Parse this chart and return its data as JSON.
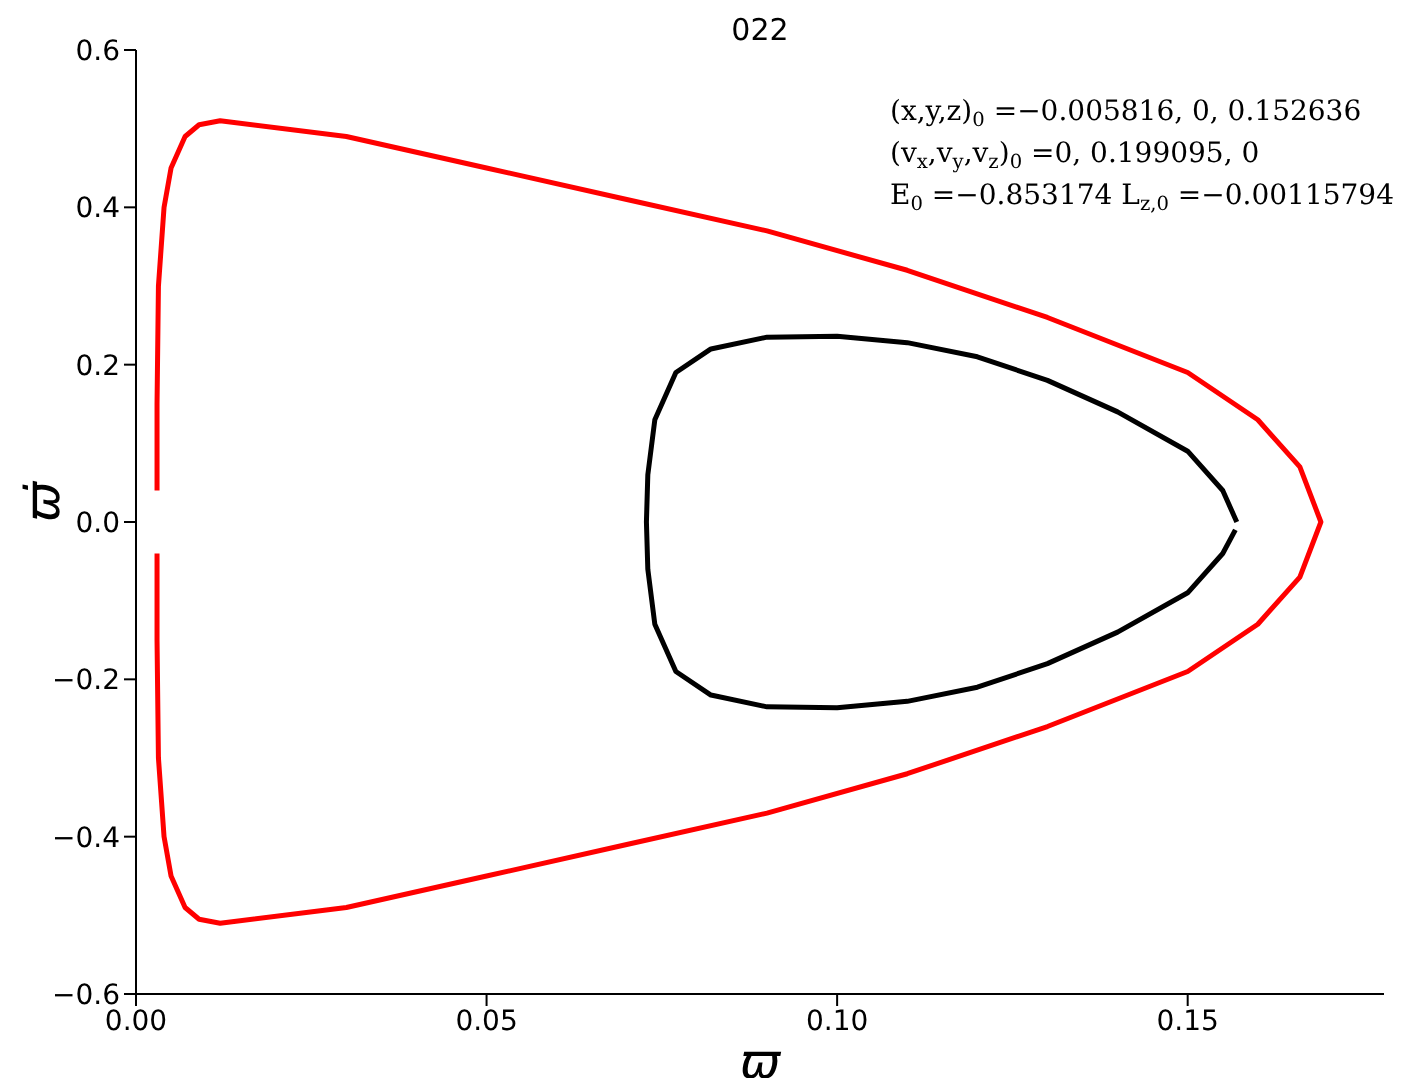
{
  "chart_data": {
    "type": "line",
    "title": "022",
    "xlabel": "ϖ",
    "ylabel": "ϖ̇",
    "annotations": [
      "(x,y,z)$_{0}$ =−0.005816, 0, 0.152636",
      "(v$_{x}$,v$_{y}$,v$_{z}$)$_{0}$ =0, 0.199095, 0",
      "E$_{0}$ =−0.853174  L$_{z,0}$ =−0.00115794"
    ],
    "xlim": [
      0,
      0.178
    ],
    "ylim": [
      -0.6,
      0.6
    ],
    "xticks": [
      {
        "value": 0,
        "label": "0.00"
      },
      0.05,
      {
        "value": 0.1,
        "label": "0.10"
      },
      0.15
    ],
    "yticks": [
      {
        "value": -0.6,
        "label": "−0.6"
      },
      {
        "value": -0.4,
        "label": "−0.4"
      },
      {
        "value": -0.2,
        "label": "−0.2"
      },
      {
        "value": 0,
        "label": "0.0"
      },
      0.2,
      0.4,
      0.6
    ],
    "grid": false,
    "legend": false,
    "marker": "none",
    "line_style": "solid",
    "series": [
      {
        "color": "#ff0000",
        "x": [
          0.003,
          0.003,
          0.0032,
          0.004,
          0.005,
          0.007,
          0.009,
          0.012,
          0.03,
          0.05,
          0.07,
          0.09,
          0.11,
          0.13,
          0.15,
          0.16,
          0.166,
          0.169,
          0.166,
          0.16,
          0.15,
          0.13,
          0.11,
          0.09,
          0.07,
          0.05,
          0.03,
          0.012,
          0.009,
          0.007,
          0.005,
          0.004,
          0.0032,
          0.003,
          0.003
        ],
        "values": [
          0.04,
          0.15,
          0.3,
          0.4,
          0.45,
          0.49,
          0.505,
          0.51,
          0.49,
          0.45,
          0.41,
          0.37,
          0.32,
          0.26,
          0.19,
          0.13,
          0.07,
          0,
          -0.07,
          -0.13,
          -0.19,
          -0.26,
          -0.32,
          -0.37,
          -0.41,
          -0.45,
          -0.49,
          -0.51,
          -0.505,
          -0.49,
          -0.45,
          -0.4,
          -0.3,
          -0.15,
          -0.04
        ]
      },
      {
        "color": "#000000",
        "x": [
          0.157,
          0.155,
          0.15,
          0.14,
          0.13,
          0.12,
          0.11,
          0.1,
          0.09,
          0.082,
          0.077,
          0.074,
          0.073,
          0.0728,
          0.073,
          0.074,
          0.077,
          0.082,
          0.09,
          0.1,
          0.11,
          0.12,
          0.13,
          0.14,
          0.15,
          0.155,
          0.1568
        ],
        "values": [
          0,
          0.04,
          0.09,
          0.14,
          0.18,
          0.21,
          0.228,
          0.236,
          0.235,
          0.22,
          0.19,
          0.13,
          0.06,
          0,
          -0.06,
          -0.13,
          -0.19,
          -0.22,
          -0.235,
          -0.236,
          -0.228,
          -0.21,
          -0.18,
          -0.14,
          -0.09,
          -0.04,
          -0.01
        ]
      }
    ]
  }
}
